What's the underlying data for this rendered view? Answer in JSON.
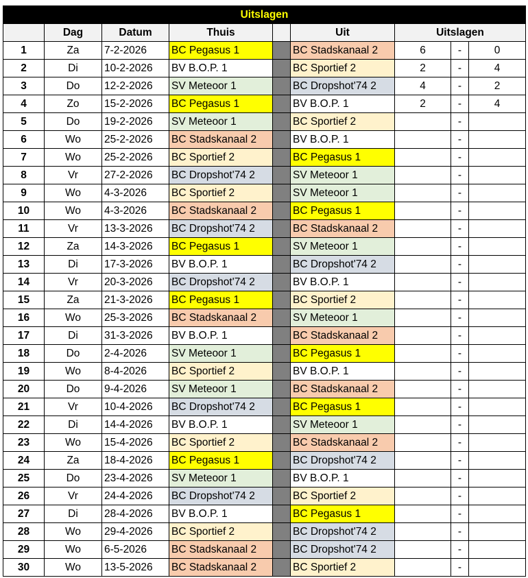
{
  "title": "Uitslagen",
  "headers": {
    "num": "",
    "dag": "Dag",
    "datum": "Datum",
    "thuis": "Thuis",
    "uit": "Uit",
    "uitslagen": "Uitslagen"
  },
  "team_colors": {
    "BC Pegasus 1": "#ffff00",
    "BC Stadskanaal 2": "#f8cbad",
    "BC  Sportief 2": "#fff2cc",
    "SV Meteoor 1": "#e2efda",
    "BC Dropshot'74 2": "#d6dce4",
    "BV B.O.P. 1": "#ffffff"
  },
  "separator_color": "#808080",
  "rows": [
    {
      "n": "1",
      "dag": "Za",
      "datum": "7-2-2026",
      "thuis": "BC Pegasus 1",
      "uit": "BC Stadskanaal 2",
      "s1": "6",
      "dash": "-",
      "s2": "0"
    },
    {
      "n": "2",
      "dag": "Di",
      "datum": "10-2-2026",
      "thuis": "BV B.O.P. 1",
      "uit": "BC  Sportief 2",
      "s1": "2",
      "dash": "-",
      "s2": "4"
    },
    {
      "n": "3",
      "dag": "Do",
      "datum": "12-2-2026",
      "thuis": "SV Meteoor 1",
      "uit": "BC Dropshot'74 2",
      "s1": "4",
      "dash": "-",
      "s2": "2"
    },
    {
      "n": "4",
      "dag": "Zo",
      "datum": "15-2-2026",
      "thuis": "BC Pegasus 1",
      "uit": "BV B.O.P. 1",
      "s1": "2",
      "dash": "-",
      "s2": "4"
    },
    {
      "n": "5",
      "dag": "Do",
      "datum": "19-2-2026",
      "thuis": "SV Meteoor 1",
      "uit": "BC  Sportief 2",
      "s1": "",
      "dash": "-",
      "s2": ""
    },
    {
      "n": "6",
      "dag": "Wo",
      "datum": "25-2-2026",
      "thuis": "BC Stadskanaal 2",
      "uit": "BV B.O.P. 1",
      "s1": "",
      "dash": "-",
      "s2": ""
    },
    {
      "n": "7",
      "dag": "Wo",
      "datum": "25-2-2026",
      "thuis": "BC  Sportief 2",
      "uit": "BC Pegasus 1",
      "s1": "",
      "dash": "-",
      "s2": ""
    },
    {
      "n": "8",
      "dag": "Vr",
      "datum": "27-2-2026",
      "thuis": "BC Dropshot'74 2",
      "uit": "SV Meteoor 1",
      "s1": "",
      "dash": "-",
      "s2": ""
    },
    {
      "n": "9",
      "dag": "Wo",
      "datum": "4-3-2026",
      "thuis": "BC  Sportief 2",
      "uit": "SV Meteoor 1",
      "s1": "",
      "dash": "-",
      "s2": ""
    },
    {
      "n": "10",
      "dag": "Wo",
      "datum": "4-3-2026",
      "thuis": "BC Stadskanaal 2",
      "uit": "BC Pegasus 1",
      "s1": "",
      "dash": "-",
      "s2": ""
    },
    {
      "n": "11",
      "dag": "Vr",
      "datum": "13-3-2026",
      "thuis": "BC Dropshot'74 2",
      "uit": "BC Stadskanaal 2",
      "s1": "",
      "dash": "-",
      "s2": ""
    },
    {
      "n": "12",
      "dag": "Za",
      "datum": "14-3-2026",
      "thuis": "BC Pegasus 1",
      "uit": "SV Meteoor 1",
      "s1": "",
      "dash": "-",
      "s2": ""
    },
    {
      "n": "13",
      "dag": "Di",
      "datum": "17-3-2026",
      "thuis": "BV B.O.P. 1",
      "uit": "BC Dropshot'74 2",
      "s1": "",
      "dash": "-",
      "s2": ""
    },
    {
      "n": "14",
      "dag": "Vr",
      "datum": "20-3-2026",
      "thuis": "BC Dropshot'74 2",
      "uit": "BV B.O.P. 1",
      "s1": "",
      "dash": "-",
      "s2": ""
    },
    {
      "n": "15",
      "dag": "Za",
      "datum": "21-3-2026",
      "thuis": "BC Pegasus 1",
      "uit": "BC  Sportief 2",
      "s1": "",
      "dash": "-",
      "s2": ""
    },
    {
      "n": "16",
      "dag": "Wo",
      "datum": "25-3-2026",
      "thuis": "BC Stadskanaal 2",
      "uit": "SV Meteoor 1",
      "s1": "",
      "dash": "-",
      "s2": ""
    },
    {
      "n": "17",
      "dag": "Di",
      "datum": "31-3-2026",
      "thuis": "BV B.O.P. 1",
      "uit": "BC Stadskanaal 2",
      "s1": "",
      "dash": "-",
      "s2": ""
    },
    {
      "n": "18",
      "dag": "Do",
      "datum": "2-4-2026",
      "thuis": "SV Meteoor 1",
      "uit": "BC Pegasus 1",
      "s1": "",
      "dash": "-",
      "s2": ""
    },
    {
      "n": "19",
      "dag": "Wo",
      "datum": "8-4-2026",
      "thuis": "BC  Sportief 2",
      "uit": "BV B.O.P. 1",
      "s1": "",
      "dash": "-",
      "s2": ""
    },
    {
      "n": "20",
      "dag": "Do",
      "datum": "9-4-2026",
      "thuis": "SV Meteoor 1",
      "uit": "BC Stadskanaal 2",
      "s1": "",
      "dash": "-",
      "s2": ""
    },
    {
      "n": "21",
      "dag": "Vr",
      "datum": "10-4-2026",
      "thuis": "BC Dropshot'74 2",
      "uit": "BC Pegasus 1",
      "s1": "",
      "dash": "-",
      "s2": ""
    },
    {
      "n": "22",
      "dag": "Di",
      "datum": "14-4-2026",
      "thuis": "BV B.O.P. 1",
      "uit": "SV Meteoor 1",
      "s1": "",
      "dash": "-",
      "s2": ""
    },
    {
      "n": "23",
      "dag": "Wo",
      "datum": "15-4-2026",
      "thuis": "BC  Sportief 2",
      "uit": "BC Stadskanaal 2",
      "s1": "",
      "dash": "-",
      "s2": ""
    },
    {
      "n": "24",
      "dag": "Za",
      "datum": "18-4-2026",
      "thuis": "BC Pegasus 1",
      "uit": "BC Dropshot'74 2",
      "s1": "",
      "dash": "-",
      "s2": ""
    },
    {
      "n": "25",
      "dag": "Do",
      "datum": "23-4-2026",
      "thuis": "SV Meteoor 1",
      "uit": "BV B.O.P. 1",
      "s1": "",
      "dash": "-",
      "s2": ""
    },
    {
      "n": "26",
      "dag": "Vr",
      "datum": "24-4-2026",
      "thuis": "BC Dropshot'74 2",
      "uit": "BC  Sportief 2",
      "s1": "",
      "dash": "-",
      "s2": ""
    },
    {
      "n": "27",
      "dag": "Di",
      "datum": "28-4-2026",
      "thuis": "BV B.O.P. 1",
      "uit": "BC Pegasus 1",
      "s1": "",
      "dash": "-",
      "s2": ""
    },
    {
      "n": "28",
      "dag": "Wo",
      "datum": "29-4-2026",
      "thuis": "BC  Sportief 2",
      "uit": "BC Dropshot'74 2",
      "s1": "",
      "dash": "-",
      "s2": ""
    },
    {
      "n": "29",
      "dag": "Wo",
      "datum": "6-5-2026",
      "thuis": "BC Stadskanaal 2",
      "uit": "BC Dropshot'74 2",
      "s1": "",
      "dash": "-",
      "s2": ""
    },
    {
      "n": "30",
      "dag": "Wo",
      "datum": "13-5-2026",
      "thuis": "BC Stadskanaal 2",
      "uit": "BC  Sportief 2",
      "s1": "",
      "dash": "-",
      "s2": ""
    }
  ]
}
